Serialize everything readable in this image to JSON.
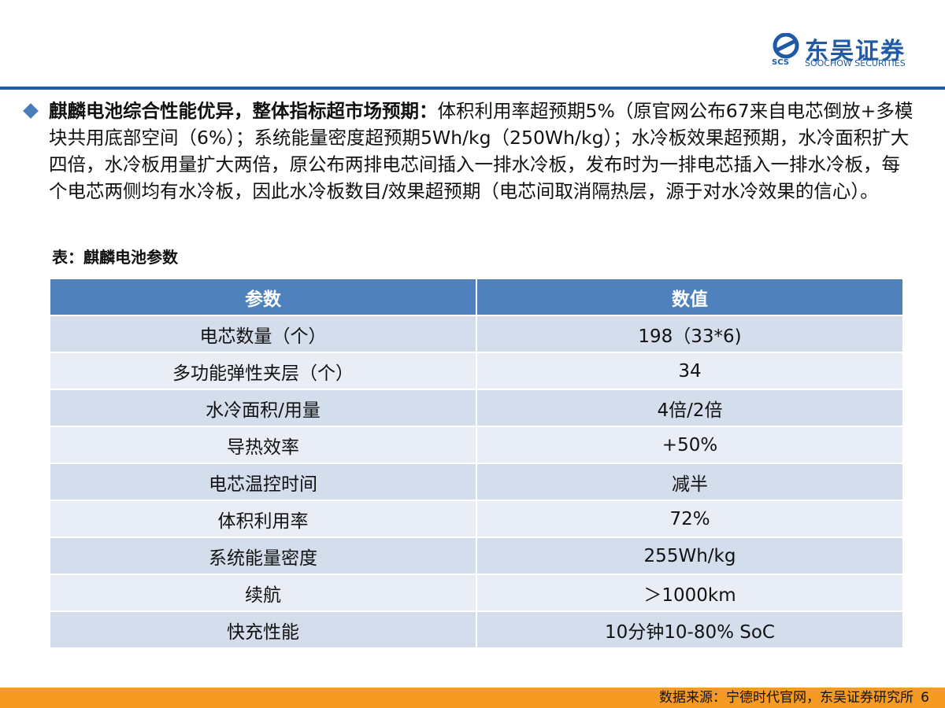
{
  "header": {
    "logo_mark": "SCS",
    "logo_cn": "东吴证券",
    "logo_en": "SOOCHOW SECURITIES"
  },
  "bullet": {
    "title": "麒麟电池综合性能优异，整体指标超市场预期：",
    "text": "体积利用率超预期5%（原官网公布67来自电芯倒放+多模块共用底部空间（6%）；系统能量密度超预期5Wh/kg（250Wh/kg）；水冷板效果超预期，水冷面积扩大四倍，水冷板用量扩大两倍，原公布两排电芯间插入一排水冷板，发布时为一排电芯插入一排水冷板，每个电芯两侧均有水冷板，因此水冷板数目/效果超预期（电芯间取消隔热层，源于对水冷效果的信心）。"
  },
  "table": {
    "caption": "表：麒麟电池参数",
    "header": [
      "参数",
      "数值"
    ],
    "rows": [
      [
        "电芯数量（个）",
        "198（33*6)"
      ],
      [
        "多功能弹性夹层（个）",
        "34"
      ],
      [
        "水冷面积/用量",
        "4倍/2倍"
      ],
      [
        "导热效率",
        "+50%"
      ],
      [
        "电芯温控时间",
        "减半"
      ],
      [
        "体积利用率",
        "72%"
      ],
      [
        "系统能量密度",
        "255Wh/kg"
      ],
      [
        "续航",
        "＞1000km"
      ],
      [
        "快充性能",
        "10分钟10-80% SoC"
      ]
    ]
  },
  "footer": {
    "source": "数据来源：宁德时代官网，东吴证券研究所",
    "page": "6"
  }
}
